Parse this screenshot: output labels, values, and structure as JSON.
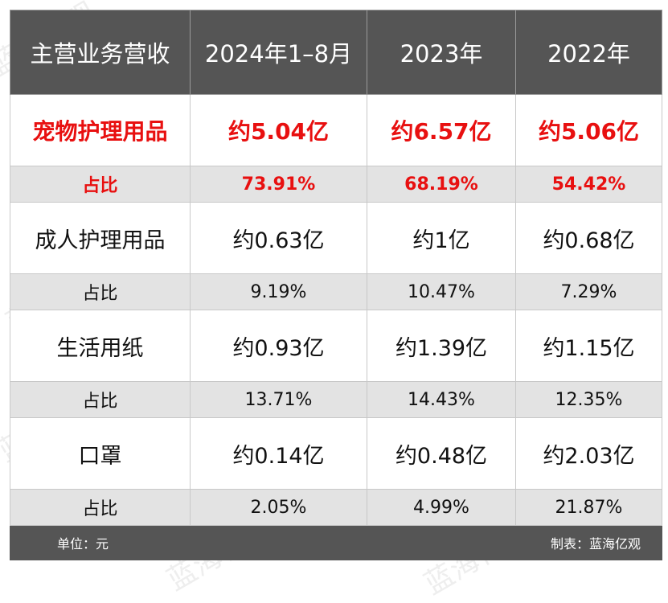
{
  "header": [
    "主营业务营收",
    "2024年1–8月",
    "2023年",
    "2022年"
  ],
  "rows": [
    {
      "label": "宠物护理用品",
      "values": [
        "约5.04亿",
        "约6.57亿",
        "约5.06亿"
      ],
      "highlight": true
    },
    {
      "label": "占比",
      "values": [
        "73.91%",
        "68.19%",
        "54.42%"
      ],
      "highlight": true
    },
    {
      "label": "成人护理用品",
      "values": [
        "约0.63亿",
        "约1亿",
        "约0.68亿"
      ]
    },
    {
      "label": "占比",
      "values": [
        "9.19%",
        "10.47%",
        "7.29%"
      ]
    },
    {
      "label": "生活用纸",
      "values": [
        "约0.93亿",
        "约1.39亿",
        "约1.15亿"
      ]
    },
    {
      "label": "占比",
      "values": [
        "13.71%",
        "14.43%",
        "12.35%"
      ]
    },
    {
      "label": "口罩",
      "values": [
        "约0.14亿",
        "约0.48亿",
        "约2.03亿"
      ]
    },
    {
      "label": "占比",
      "values": [
        "2.05%",
        "4.99%",
        "21.87%"
      ]
    }
  ],
  "footer": {
    "unit": "单位：元",
    "source": "制表：蓝海亿观"
  },
  "watermark": "蓝海亿观",
  "colors": {
    "header_bg": "#555555",
    "highlight": "#e81010",
    "ratio_bg": "#e3e3e3"
  }
}
